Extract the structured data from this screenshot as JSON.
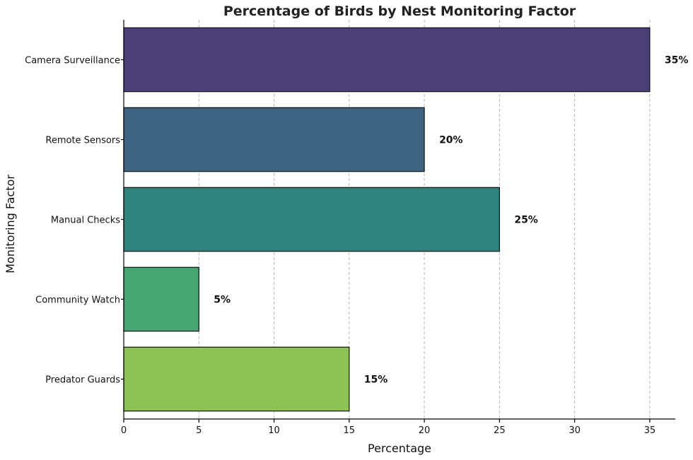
{
  "chart_data": {
    "type": "bar",
    "orientation": "horizontal",
    "title": "Percentage of Birds by Nest Monitoring Factor",
    "xlabel": "Percentage",
    "ylabel": "Monitoring Factor",
    "categories": [
      "Camera Surveillance",
      "Remote Sensors",
      "Manual Checks",
      "Community Watch",
      "Predator Guards"
    ],
    "values": [
      35,
      20,
      25,
      5,
      15
    ],
    "data_labels": [
      "35%",
      "20%",
      "25%",
      "5%",
      "15%"
    ],
    "colors": [
      "#4b3f78",
      "#3d6583",
      "#2e837c",
      "#46a774",
      "#8dc255"
    ],
    "xlim": [
      0,
      36.7
    ],
    "xticks": [
      0,
      5,
      10,
      15,
      20,
      25,
      30,
      35
    ],
    "xtick_labels": [
      "0",
      "5",
      "10",
      "15",
      "20",
      "25",
      "30",
      "35"
    ],
    "grid": "x-axis dashed"
  }
}
